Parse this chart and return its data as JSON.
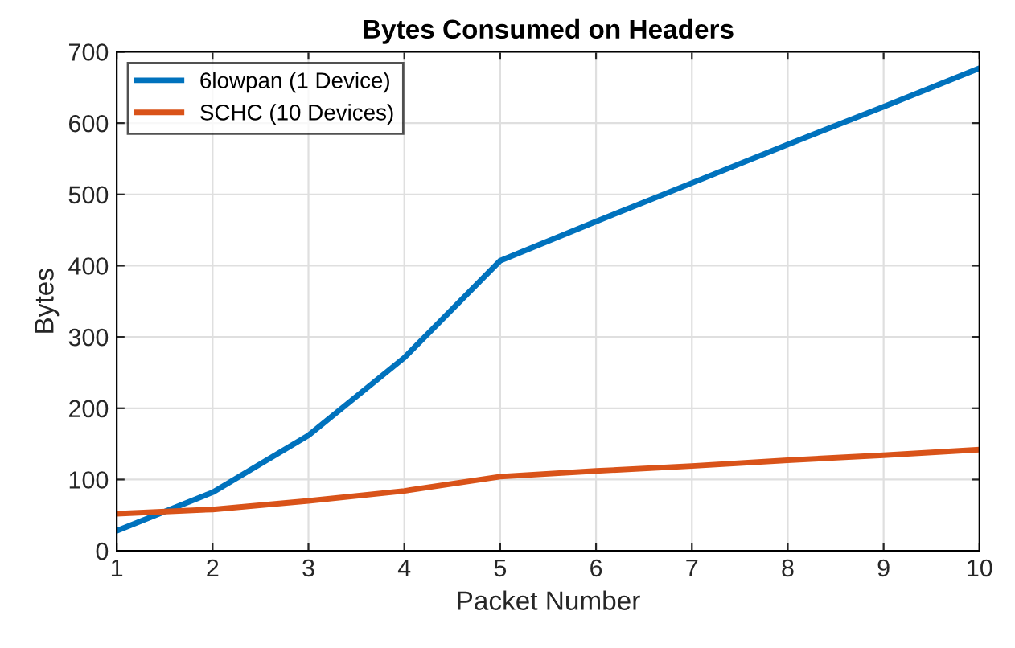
{
  "chart_data": {
    "type": "line",
    "title": "Bytes Consumed on Headers",
    "xlabel": "Packet Number",
    "ylabel": "Bytes",
    "x": [
      1,
      2,
      3,
      4,
      5,
      6,
      7,
      8,
      9,
      10
    ],
    "series": [
      {
        "name": "6lowpan (1 Device)",
        "color": "#0072bd",
        "values": [
          28,
          82,
          162,
          271,
          407,
          462,
          516,
          570,
          623,
          677
        ]
      },
      {
        "name": "SCHC (10 Devices)",
        "color": "#d95319",
        "values": [
          52,
          58,
          70,
          84,
          104,
          112,
          119,
          127,
          134,
          142
        ]
      }
    ],
    "xlim": [
      1,
      10
    ],
    "xticks": [
      1,
      2,
      3,
      4,
      5,
      6,
      7,
      8,
      9,
      10
    ],
    "ylim": [
      0,
      700
    ],
    "yticks": [
      0,
      100,
      200,
      300,
      400,
      500,
      600,
      700
    ],
    "grid": true,
    "legend": "top left",
    "marker": "none",
    "line_style": "solid"
  }
}
